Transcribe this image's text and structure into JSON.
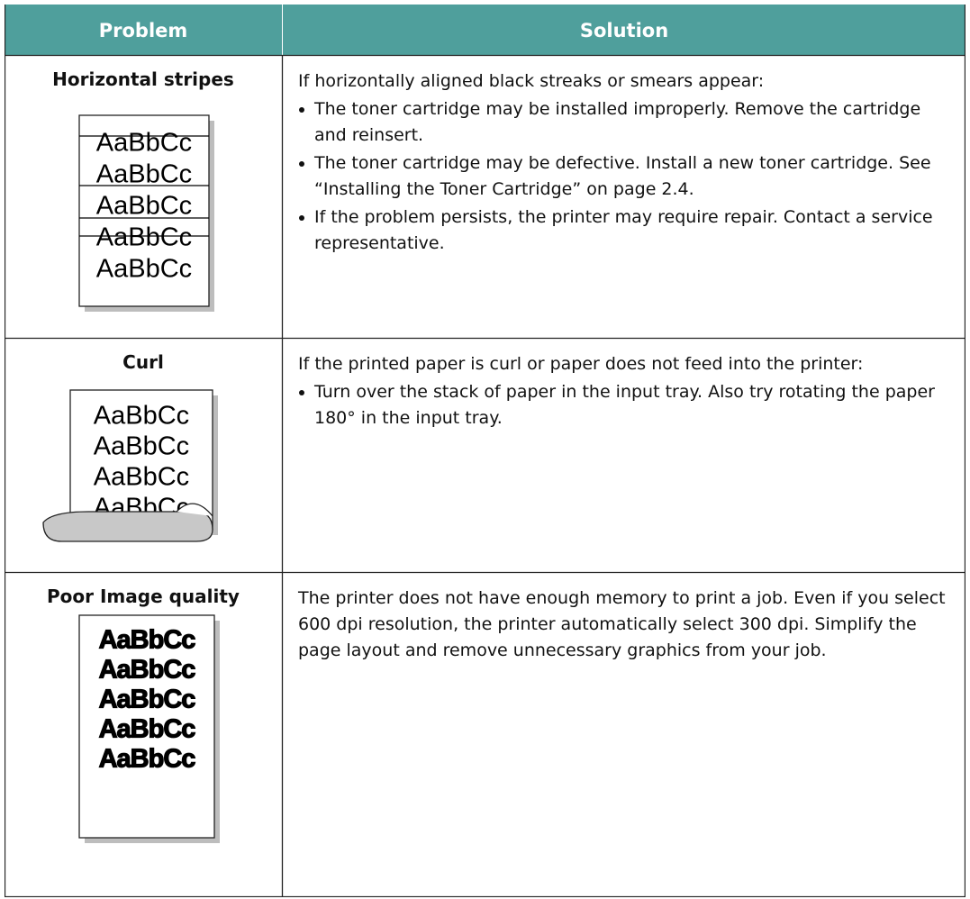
{
  "header": {
    "problem": "Problem",
    "solution": "Solution"
  },
  "rows": [
    {
      "problem": "Horizontal stripes",
      "sample_lines": [
        "AaBbCc",
        "AaBbCc",
        "AaBbCc",
        "AaBbCc",
        "AaBbCc"
      ],
      "intro": "If horizontally aligned black streaks or smears appear:",
      "bullets": [
        "The toner cartridge may be installed improperly. Remove the cartridge and reinsert.",
        "The toner cartridge may be defective. Install a new toner cartridge. See “Installing the Toner Cartridge” on page 2.4.",
        "If the problem persists, the printer may require repair. Contact a service representative."
      ]
    },
    {
      "problem": "Curl",
      "sample_lines": [
        "AaBbCc",
        "AaBbCc",
        "AaBbCc",
        "AaBbCc"
      ],
      "intro": "If the printed paper is curl or paper does not feed into the printer:",
      "bullets": [
        "Turn over the stack of paper in the input tray. Also try rotating the paper 180° in the input tray."
      ]
    },
    {
      "problem": "Poor Image quality",
      "sample_lines": [
        "AaBbCc",
        "AaBbCc",
        "AaBbCc",
        "AaBbCc",
        "AaBbCc"
      ],
      "intro": "The printer does not have enough memory to print a job. Even if you select 600 dpi resolution, the printer automatically select 300 dpi. Simplify the page layout and remove unnecessary graphics from your job.",
      "bullets": []
    }
  ]
}
